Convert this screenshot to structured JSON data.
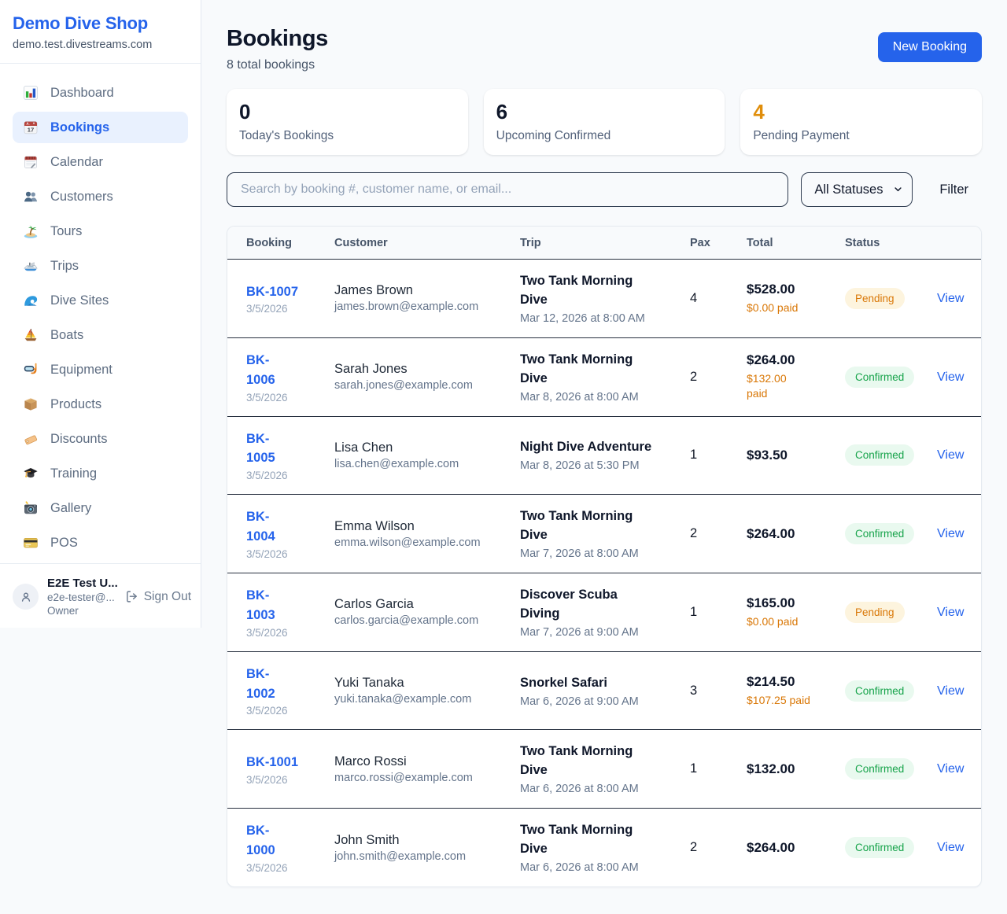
{
  "colors": {
    "accent": "#2563eb",
    "page_bg": "#f8fafc",
    "active_bg": "#e9f1fe",
    "stat_orange": "#e08e0b",
    "paid_orange": "#d97706",
    "pending_bg": "#fdf4de",
    "pending_text": "#d97706",
    "confirmed_bg": "#e9f9ef",
    "confirmed_text": "#16a34a"
  },
  "sidebar": {
    "brand": {
      "name": "Demo Dive Shop",
      "domain": "demo.test.divestreams.com"
    },
    "items": [
      {
        "label": "Dashboard",
        "icon": "dashboard",
        "active": false
      },
      {
        "label": "Bookings",
        "icon": "bookings",
        "active": true
      },
      {
        "label": "Calendar",
        "icon": "calendar",
        "active": false
      },
      {
        "label": "Customers",
        "icon": "customers",
        "active": false
      },
      {
        "label": "Tours",
        "icon": "tours",
        "active": false
      },
      {
        "label": "Trips",
        "icon": "trips",
        "active": false
      },
      {
        "label": "Dive Sites",
        "icon": "dive-sites",
        "active": false
      },
      {
        "label": "Boats",
        "icon": "boats",
        "active": false
      },
      {
        "label": "Equipment",
        "icon": "equipment",
        "active": false
      },
      {
        "label": "Products",
        "icon": "products",
        "active": false
      },
      {
        "label": "Discounts",
        "icon": "discounts",
        "active": false
      },
      {
        "label": "Training",
        "icon": "training",
        "active": false
      },
      {
        "label": "Gallery",
        "icon": "gallery",
        "active": false
      },
      {
        "label": "POS",
        "icon": "pos",
        "active": false
      }
    ],
    "user": {
      "name": "E2E Test U...",
      "email": "e2e-tester@...",
      "role": "Owner",
      "signout_label": "Sign Out"
    }
  },
  "header": {
    "title": "Bookings",
    "subtitle": "8 total bookings",
    "new_booking_label": "New Booking"
  },
  "stats": [
    {
      "value": "0",
      "label": "Today's Bookings",
      "accent": false
    },
    {
      "value": "6",
      "label": "Upcoming Confirmed",
      "accent": false
    },
    {
      "value": "4",
      "label": "Pending Payment",
      "accent": true
    }
  ],
  "toolbar": {
    "search_placeholder": "Search by booking #, customer name, or email...",
    "status_filter_value": "All Statuses",
    "filter_label": "Filter"
  },
  "table": {
    "headers": [
      "Booking",
      "Customer",
      "Trip",
      "Pax",
      "Total",
      "Status"
    ],
    "view_label": "View",
    "rows": [
      {
        "code": "BK-1007",
        "date": "3/5/2026",
        "customer": "James Brown",
        "email": "james.brown@example.com",
        "trip": "Two Tank Morning Dive",
        "trip_time": "Mar 12, 2026 at 8:00 AM",
        "pax": "4",
        "total": "$528.00",
        "paid": "$0.00 paid",
        "status": "Pending",
        "wrap": {
          "code": false,
          "trip": true,
          "paid": false
        }
      },
      {
        "code": "BK-1006",
        "date": "3/5/2026",
        "customer": "Sarah Jones",
        "email": "sarah.jones@example.com",
        "trip": "Two Tank Morning Dive",
        "trip_time": "Mar 8, 2026 at 8:00 AM",
        "pax": "2",
        "total": "$264.00",
        "paid": "$132.00 paid",
        "status": "Confirmed",
        "wrap": {
          "code": true,
          "trip": true,
          "paid": true
        }
      },
      {
        "code": "BK-1005",
        "date": "3/5/2026",
        "customer": "Lisa Chen",
        "email": "lisa.chen@example.com",
        "trip": "Night Dive Adventure",
        "trip_time": "Mar 8, 2026 at 5:30 PM",
        "pax": "1",
        "total": "$93.50",
        "paid": "",
        "status": "Confirmed",
        "wrap": {
          "code": true,
          "trip": false,
          "paid": false
        }
      },
      {
        "code": "BK-1004",
        "date": "3/5/2026",
        "customer": "Emma Wilson",
        "email": "emma.wilson@example.com",
        "trip": "Two Tank Morning Dive",
        "trip_time": "Mar 7, 2026 at 8:00 AM",
        "pax": "2",
        "total": "$264.00",
        "paid": "",
        "status": "Confirmed",
        "wrap": {
          "code": true,
          "trip": true,
          "paid": false
        }
      },
      {
        "code": "BK-1003",
        "date": "3/5/2026",
        "customer": "Carlos Garcia",
        "email": "carlos.garcia@example.com",
        "trip": "Discover Scuba Diving",
        "trip_time": "Mar 7, 2026 at 9:00 AM",
        "pax": "1",
        "total": "$165.00",
        "paid": "$0.00 paid",
        "status": "Pending",
        "wrap": {
          "code": true,
          "trip": true,
          "paid": false
        }
      },
      {
        "code": "BK-1002",
        "date": "3/5/2026",
        "customer": "Yuki Tanaka",
        "email": "yuki.tanaka@example.com",
        "trip": "Snorkel Safari",
        "trip_time": "Mar 6, 2026 at 9:00 AM",
        "pax": "3",
        "total": "$214.50",
        "paid": "$107.25 paid",
        "status": "Confirmed",
        "wrap": {
          "code": true,
          "trip": false,
          "paid": false
        }
      },
      {
        "code": "BK-1001",
        "date": "3/5/2026",
        "customer": "Marco Rossi",
        "email": "marco.rossi@example.com",
        "trip": "Two Tank Morning Dive",
        "trip_time": "Mar 6, 2026 at 8:00 AM",
        "pax": "1",
        "total": "$132.00",
        "paid": "",
        "status": "Confirmed",
        "wrap": {
          "code": false,
          "trip": true,
          "paid": false
        }
      },
      {
        "code": "BK-1000",
        "date": "3/5/2026",
        "customer": "John Smith",
        "email": "john.smith@example.com",
        "trip": "Two Tank Morning Dive",
        "trip_time": "Mar 6, 2026 at 8:00 AM",
        "pax": "2",
        "total": "$264.00",
        "paid": "",
        "status": "Confirmed",
        "wrap": {
          "code": true,
          "trip": true,
          "paid": false
        }
      }
    ]
  }
}
